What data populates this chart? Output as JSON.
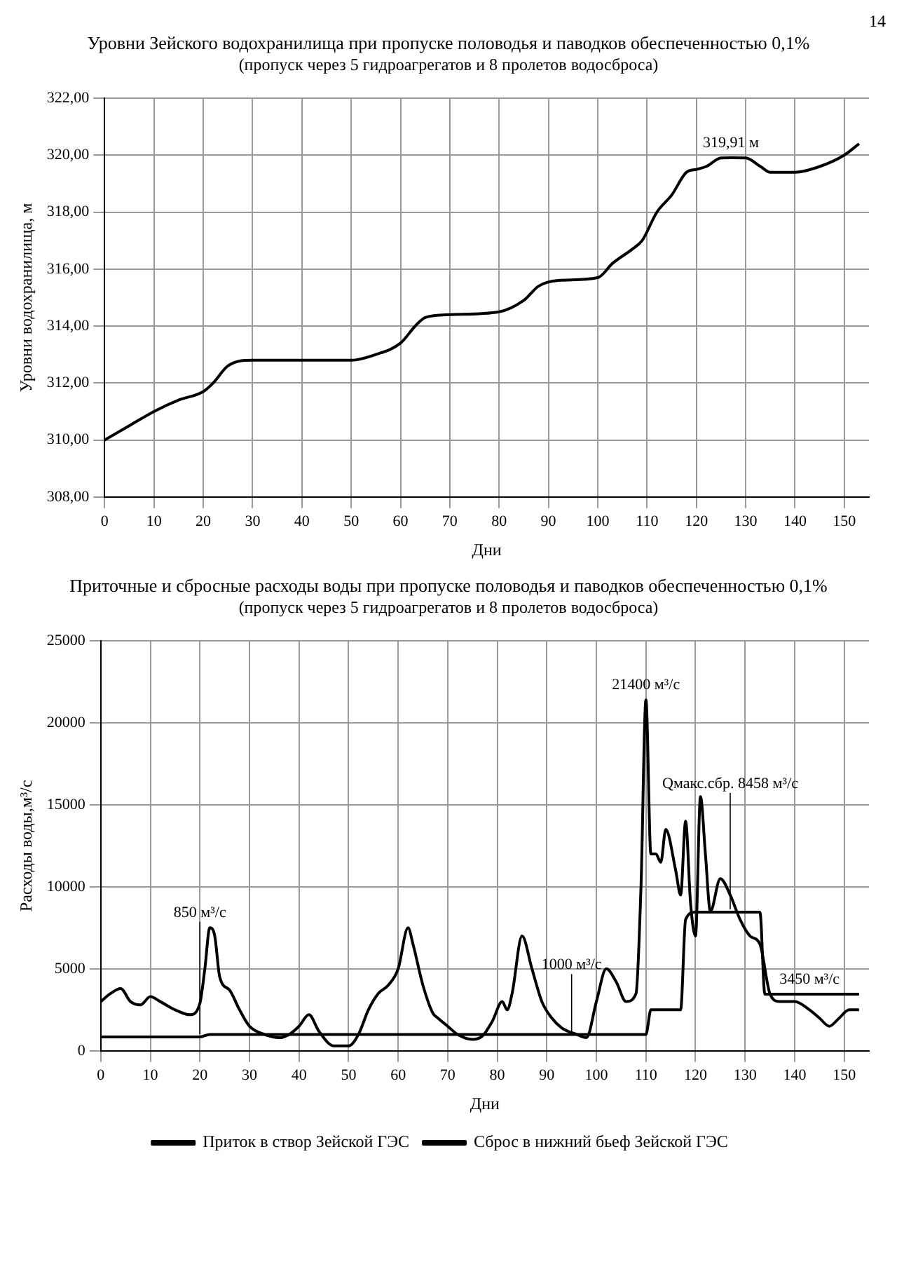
{
  "chart_data": [
    {
      "type": "line",
      "title": "Уровни Зейского водохранилища при пропуске половодья и паводков обеспеченностью 0,1%",
      "subtitle": "(пропуск через 5 гидроагрегатов и 8 пролетов водосброса)",
      "xlabel": "Дни",
      "ylabel": "Уровни водохранилища, м",
      "series": [
        {
          "color": "#000000",
          "x": [
            0,
            5,
            10,
            15,
            20,
            22,
            25,
            30,
            40,
            50,
            55,
            60,
            63,
            65,
            70,
            80,
            85,
            88,
            92,
            100,
            103,
            107,
            109,
            112,
            115,
            118,
            120,
            122,
            125,
            127,
            130,
            133,
            135,
            140,
            145,
            150,
            153
          ],
          "values": [
            310.0,
            310.5,
            311.0,
            311.4,
            311.7,
            312.0,
            312.6,
            312.8,
            312.8,
            312.8,
            313.0,
            313.4,
            314.0,
            314.3,
            314.4,
            314.5,
            314.9,
            315.4,
            315.6,
            315.7,
            316.2,
            316.7,
            317.0,
            318.0,
            318.6,
            319.4,
            319.5,
            319.6,
            319.9,
            319.91,
            319.9,
            319.6,
            319.4,
            319.4,
            319.6,
            320.0,
            320.4
          ]
        }
      ],
      "xlim": [
        0,
        155
      ],
      "xticks": [
        0,
        10,
        20,
        30,
        40,
        50,
        60,
        70,
        80,
        90,
        100,
        110,
        120,
        130,
        140,
        150
      ],
      "ylim": [
        308,
        322
      ],
      "yticks": [
        {
          "value": 308,
          "label": "308,00"
        },
        {
          "value": 310,
          "label": "310,00"
        },
        {
          "value": 312,
          "label": "312,00"
        },
        {
          "value": 314,
          "label": "314,00"
        },
        {
          "value": 316,
          "label": "316,00"
        },
        {
          "value": 318,
          "label": "318,00"
        },
        {
          "value": 320,
          "label": "320,00"
        },
        {
          "value": 322,
          "label": "322,00"
        }
      ],
      "grid": true,
      "legend": false,
      "marker": "none",
      "line_style": "solid",
      "annotations": [
        "14",
        {
          "text": "319,91 м",
          "x": 127,
          "y": 319.91
        }
      ]
    },
    {
      "type": "line",
      "title": "Приточные и сбросные расходы воды при пропуске половодья и паводков обеспеченностью 0,1%",
      "subtitle": "(пропуск через 5 гидроагрегатов и 8 пролетов водосброса)",
      "xlabel": "Дни",
      "ylabel": "Расходы воды,м³/с",
      "series": [
        {
          "name": "Приток в створ Зейской ГЭС",
          "color": "#000000",
          "x": [
            0,
            2,
            4,
            6,
            8,
            10,
            12,
            15,
            18,
            20,
            21,
            22,
            23,
            24,
            26,
            28,
            30,
            33,
            36,
            38,
            40,
            42,
            44,
            47,
            50,
            52,
            54,
            56,
            58,
            60,
            62,
            63,
            65,
            67,
            68,
            70,
            72,
            75,
            77,
            79,
            81,
            82,
            83,
            85,
            87,
            89,
            91,
            93,
            96,
            98,
            100,
            102,
            104,
            106,
            108,
            109,
            110,
            111,
            112,
            113,
            114,
            116,
            117,
            118,
            119,
            120,
            121,
            122,
            123,
            125,
            127,
            129,
            131,
            133,
            135,
            137,
            140,
            143,
            145,
            147,
            149,
            151,
            153
          ],
          "values": [
            3000,
            3500,
            3800,
            3000,
            2800,
            3300,
            3000,
            2500,
            2200,
            2900,
            5000,
            7500,
            7000,
            4500,
            3700,
            2500,
            1500,
            1000,
            800,
            1000,
            1500,
            2200,
            1200,
            300,
            300,
            1000,
            2500,
            3500,
            4000,
            5000,
            7500,
            6500,
            4000,
            2300,
            2000,
            1500,
            1000,
            700,
            900,
            1800,
            3000,
            2500,
            3500,
            7000,
            5000,
            3000,
            2000,
            1400,
            1000,
            800,
            3000,
            5000,
            4200,
            3000,
            3500,
            10000,
            21400,
            12000,
            12000,
            11500,
            13500,
            11000,
            9500,
            14000,
            9000,
            7000,
            15500,
            12000,
            8500,
            10500,
            9500,
            8000,
            7000,
            6500,
            3500,
            3000,
            3000,
            2500,
            2000,
            1500,
            2000,
            2500,
            2500
          ]
        },
        {
          "name": "Сброс в нижний бьеф Зейской ГЭС",
          "color": "#000000",
          "x": [
            0,
            20,
            22,
            110,
            111,
            117,
            118,
            120,
            133,
            134,
            153
          ],
          "values": [
            850,
            850,
            1000,
            1000,
            2500,
            2500,
            8000,
            8458,
            8458,
            3450,
            3450
          ]
        }
      ],
      "xlim": [
        0,
        155
      ],
      "xticks": [
        0,
        10,
        20,
        30,
        40,
        50,
        60,
        70,
        80,
        90,
        100,
        110,
        120,
        130,
        140,
        150
      ],
      "ylim": [
        0,
        25000
      ],
      "yticks": [
        0,
        5000,
        10000,
        15000,
        20000,
        25000
      ],
      "grid": true,
      "legend": "bottom",
      "marker": "none",
      "line_style": "solid",
      "annotations": [
        {
          "text": "850 м³/с",
          "x": 20,
          "y": 850
        },
        {
          "text": "1000 м³/с",
          "x": 95,
          "y": 1000
        },
        {
          "text": "21400 м³/с",
          "x": 110,
          "y": 21400
        },
        {
          "text": "Qмакс.сбр. 8458 м³/с",
          "x": 127,
          "y": 8458
        },
        {
          "text": "3450 м³/с",
          "x": 143,
          "y": 3450
        }
      ]
    }
  ]
}
